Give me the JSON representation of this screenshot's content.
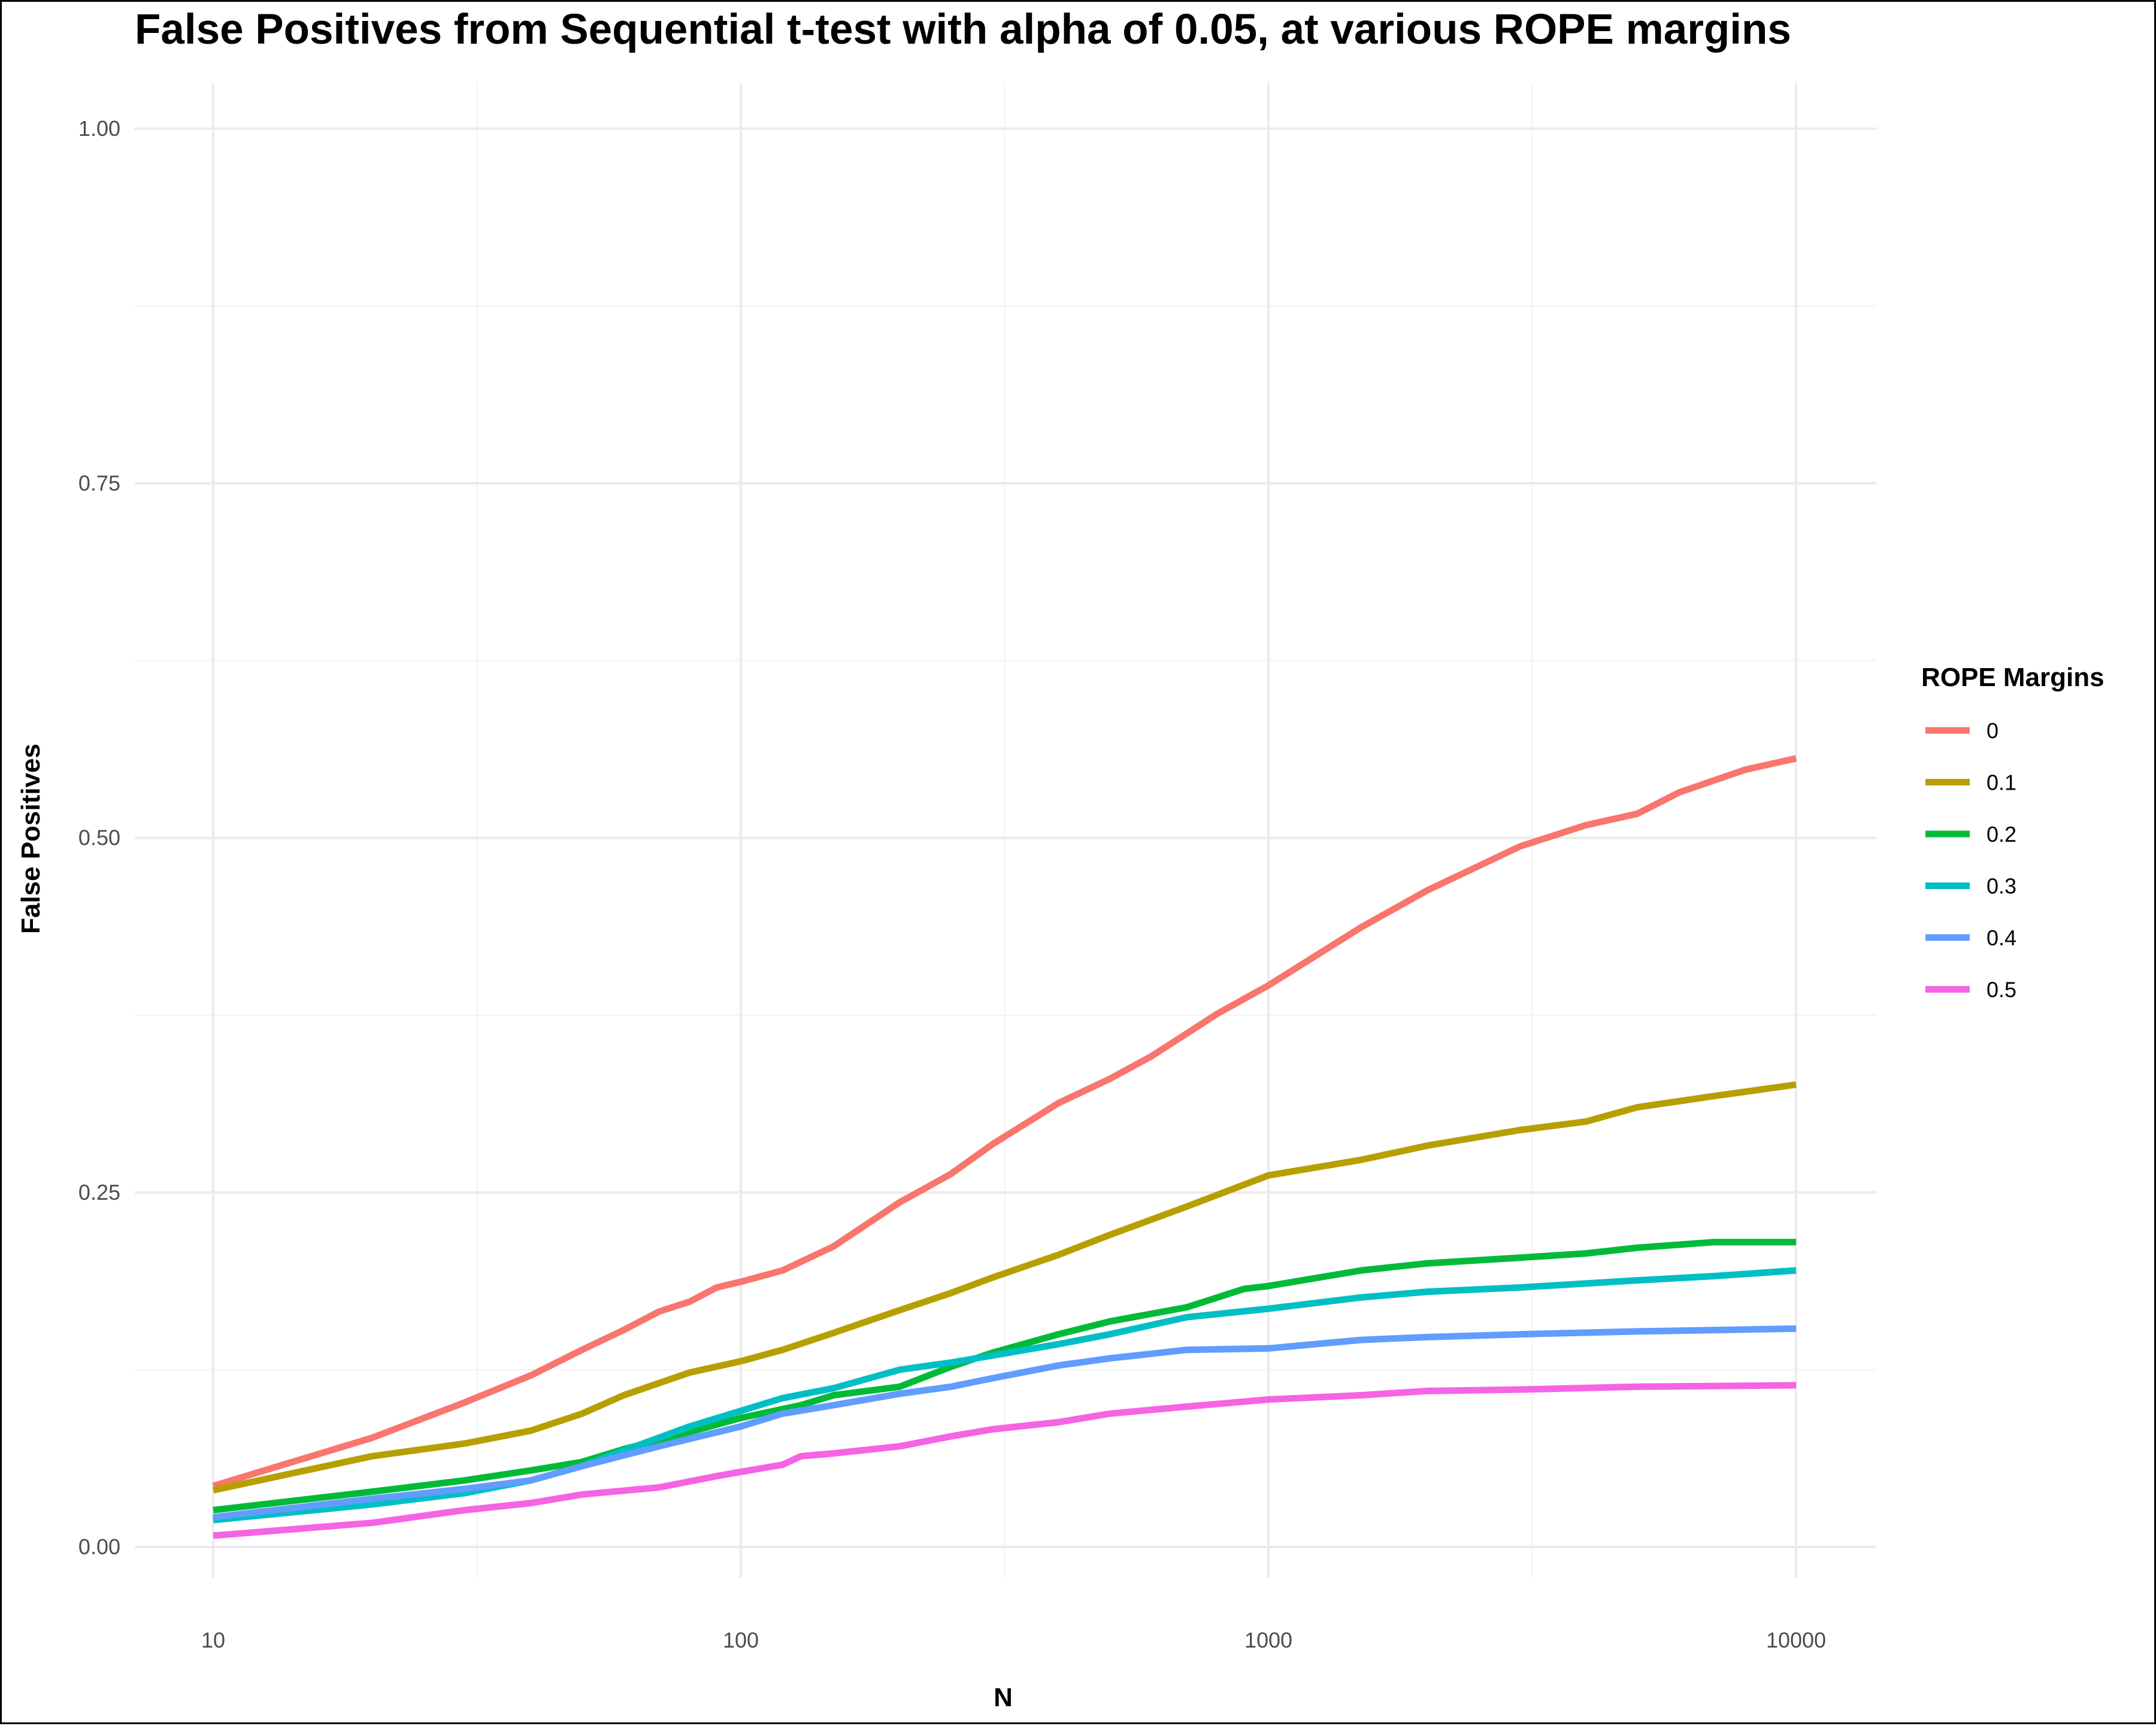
{
  "chart_data": {
    "type": "line",
    "title": "False Positives from Sequential t-test with alpha of 0.05, at various ROPE margins",
    "xlabel": "N",
    "ylabel": "False Positives",
    "x_scale": "log10",
    "xlim": [
      10,
      10000
    ],
    "ylim": [
      0,
      1
    ],
    "x_ticks": [
      "10",
      "100",
      "1000",
      "10000"
    ],
    "y_ticks": [
      "0.00",
      "0.25",
      "0.50",
      "0.75",
      "1.00"
    ],
    "grid": true,
    "legend": {
      "title": "ROPE Margins",
      "position": "right"
    },
    "series": [
      {
        "name": "0",
        "color": "#F8766D",
        "points": [
          [
            10,
            0.043
          ],
          [
            20,
            0.077
          ],
          [
            30,
            0.102
          ],
          [
            40,
            0.121
          ],
          [
            50,
            0.139
          ],
          [
            60,
            0.153
          ],
          [
            70,
            0.166
          ],
          [
            80,
            0.173
          ],
          [
            90,
            0.183
          ],
          [
            100,
            0.187
          ],
          [
            120,
            0.195
          ],
          [
            150,
            0.212
          ],
          [
            200,
            0.243
          ],
          [
            250,
            0.263
          ],
          [
            300,
            0.284
          ],
          [
            400,
            0.313
          ],
          [
            500,
            0.33
          ],
          [
            600,
            0.346
          ],
          [
            700,
            0.362
          ],
          [
            800,
            0.376
          ],
          [
            1000,
            0.396
          ],
          [
            1500,
            0.437
          ],
          [
            2000,
            0.463
          ],
          [
            3000,
            0.494
          ],
          [
            4000,
            0.509
          ],
          [
            5000,
            0.517
          ],
          [
            6000,
            0.532
          ],
          [
            8000,
            0.548
          ],
          [
            10000,
            0.556
          ]
        ]
      },
      {
        "name": "0.1",
        "color": "#B79F00",
        "points": [
          [
            10,
            0.04
          ],
          [
            20,
            0.064
          ],
          [
            30,
            0.073
          ],
          [
            40,
            0.082
          ],
          [
            50,
            0.094
          ],
          [
            60,
            0.107
          ],
          [
            80,
            0.123
          ],
          [
            100,
            0.131
          ],
          [
            120,
            0.139
          ],
          [
            150,
            0.151
          ],
          [
            200,
            0.167
          ],
          [
            250,
            0.179
          ],
          [
            300,
            0.19
          ],
          [
            400,
            0.206
          ],
          [
            500,
            0.22
          ],
          [
            700,
            0.24
          ],
          [
            1000,
            0.262
          ],
          [
            1500,
            0.273
          ],
          [
            2000,
            0.283
          ],
          [
            3000,
            0.294
          ],
          [
            4000,
            0.3
          ],
          [
            5000,
            0.31
          ],
          [
            7000,
            0.318
          ],
          [
            10000,
            0.326
          ]
        ]
      },
      {
        "name": "0.2",
        "color": "#00BA38",
        "points": [
          [
            10,
            0.026
          ],
          [
            20,
            0.039
          ],
          [
            30,
            0.047
          ],
          [
            40,
            0.054
          ],
          [
            50,
            0.06
          ],
          [
            60,
            0.069
          ],
          [
            80,
            0.081
          ],
          [
            100,
            0.091
          ],
          [
            130,
            0.1
          ],
          [
            150,
            0.107
          ],
          [
            200,
            0.113
          ],
          [
            250,
            0.127
          ],
          [
            300,
            0.137
          ],
          [
            400,
            0.15
          ],
          [
            500,
            0.159
          ],
          [
            700,
            0.169
          ],
          [
            900,
            0.182
          ],
          [
            1000,
            0.184
          ],
          [
            1500,
            0.195
          ],
          [
            2000,
            0.2
          ],
          [
            3000,
            0.204
          ],
          [
            4000,
            0.207
          ],
          [
            5000,
            0.211
          ],
          [
            7000,
            0.215
          ],
          [
            10000,
            0.215
          ]
        ]
      },
      {
        "name": "0.3",
        "color": "#00BFC4",
        "points": [
          [
            10,
            0.019
          ],
          [
            20,
            0.03
          ],
          [
            30,
            0.038
          ],
          [
            40,
            0.047
          ],
          [
            50,
            0.057
          ],
          [
            60,
            0.068
          ],
          [
            80,
            0.085
          ],
          [
            100,
            0.096
          ],
          [
            120,
            0.105
          ],
          [
            150,
            0.112
          ],
          [
            200,
            0.125
          ],
          [
            250,
            0.13
          ],
          [
            300,
            0.135
          ],
          [
            400,
            0.143
          ],
          [
            500,
            0.15
          ],
          [
            700,
            0.162
          ],
          [
            1000,
            0.168
          ],
          [
            1500,
            0.176
          ],
          [
            2000,
            0.18
          ],
          [
            3000,
            0.183
          ],
          [
            5000,
            0.188
          ],
          [
            7000,
            0.191
          ],
          [
            10000,
            0.195
          ]
        ]
      },
      {
        "name": "0.4",
        "color": "#619CFF",
        "points": [
          [
            10,
            0.021
          ],
          [
            20,
            0.034
          ],
          [
            30,
            0.041
          ],
          [
            40,
            0.047
          ],
          [
            50,
            0.057
          ],
          [
            70,
            0.071
          ],
          [
            100,
            0.085
          ],
          [
            120,
            0.094
          ],
          [
            150,
            0.1
          ],
          [
            200,
            0.108
          ],
          [
            250,
            0.113
          ],
          [
            300,
            0.119
          ],
          [
            400,
            0.128
          ],
          [
            500,
            0.133
          ],
          [
            700,
            0.139
          ],
          [
            1000,
            0.14
          ],
          [
            1500,
            0.146
          ],
          [
            2000,
            0.148
          ],
          [
            3000,
            0.15
          ],
          [
            5000,
            0.152
          ],
          [
            10000,
            0.154
          ]
        ]
      },
      {
        "name": "0.5",
        "color": "#F564E3",
        "points": [
          [
            10,
            0.008
          ],
          [
            20,
            0.017
          ],
          [
            30,
            0.026
          ],
          [
            40,
            0.031
          ],
          [
            50,
            0.037
          ],
          [
            70,
            0.042
          ],
          [
            90,
            0.05
          ],
          [
            100,
            0.053
          ],
          [
            120,
            0.058
          ],
          [
            130,
            0.064
          ],
          [
            150,
            0.066
          ],
          [
            200,
            0.071
          ],
          [
            250,
            0.078
          ],
          [
            300,
            0.083
          ],
          [
            400,
            0.088
          ],
          [
            500,
            0.094
          ],
          [
            700,
            0.099
          ],
          [
            1000,
            0.104
          ],
          [
            1500,
            0.107
          ],
          [
            2000,
            0.11
          ],
          [
            3000,
            0.111
          ],
          [
            5000,
            0.113
          ],
          [
            10000,
            0.114
          ]
        ]
      }
    ]
  }
}
